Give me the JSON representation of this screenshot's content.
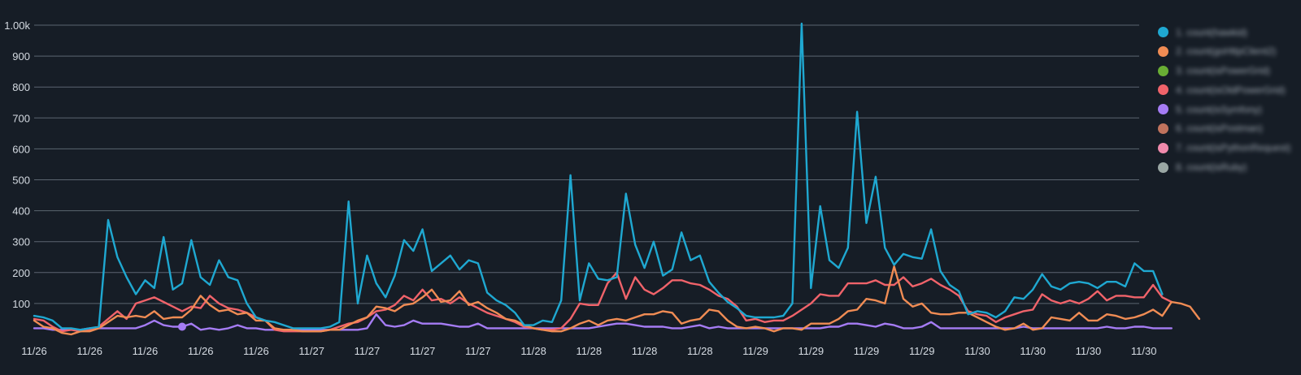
{
  "chart_data": {
    "type": "line",
    "y_ticks": [
      "100",
      "200",
      "300",
      "400",
      "500",
      "600",
      "700",
      "800",
      "900",
      "1.00k"
    ],
    "ylim": [
      0,
      1000
    ],
    "x_ticks": [
      "11/26",
      "11/26",
      "11/26",
      "11/26",
      "11/26",
      "11/27",
      "11/27",
      "11/27",
      "11/27",
      "11/28",
      "11/28",
      "11/28",
      "11/28",
      "11/29",
      "11/29",
      "11/29",
      "11/29",
      "11/30",
      "11/30",
      "11/30",
      "11/30"
    ],
    "x_tick_positions": [
      0,
      6,
      12,
      18,
      24,
      30,
      36,
      42,
      48,
      54,
      60,
      66,
      72,
      78,
      84,
      90,
      96,
      102,
      108,
      114,
      120
    ],
    "xlim": [
      0,
      119.5
    ],
    "grid": true,
    "legend_position": "right",
    "series": [
      {
        "name": "1. count(hawkid)",
        "color": "#1fa8d1",
        "values": [
          60,
          55,
          45,
          20,
          20,
          15,
          20,
          25,
          370,
          250,
          185,
          130,
          175,
          150,
          315,
          145,
          165,
          305,
          185,
          160,
          240,
          185,
          175,
          100,
          55,
          45,
          40,
          30,
          20,
          20,
          20,
          20,
          25,
          40,
          430,
          100,
          255,
          165,
          120,
          190,
          305,
          270,
          340,
          205,
          230,
          255,
          210,
          240,
          230,
          135,
          110,
          95,
          70,
          30,
          30,
          45,
          40,
          110,
          515,
          110,
          230,
          180,
          175,
          185,
          455,
          290,
          215,
          300,
          190,
          210,
          330,
          240,
          255,
          170,
          135,
          105,
          85,
          60,
          55,
          55,
          55,
          60,
          100,
          1005,
          150,
          415,
          240,
          215,
          280,
          720,
          360,
          510,
          280,
          225,
          260,
          250,
          245,
          340,
          205,
          160,
          140,
          65,
          75,
          70,
          55,
          75,
          120,
          115,
          145,
          195,
          155,
          145,
          165,
          170,
          165,
          150,
          170,
          170,
          155,
          230,
          205,
          205,
          130
        ]
      },
      {
        "name": "2. count(goHttpClient2)",
        "color": "#f08c54",
        "values": [
          45,
          25,
          20,
          5,
          0,
          10,
          10,
          20,
          40,
          60,
          55,
          60,
          55,
          75,
          50,
          55,
          55,
          80,
          125,
          95,
          75,
          80,
          65,
          70,
          45,
          45,
          20,
          15,
          15,
          10,
          10,
          10,
          15,
          15,
          30,
          45,
          55,
          90,
          85,
          75,
          95,
          100,
          120,
          145,
          105,
          110,
          140,
          95,
          105,
          85,
          70,
          50,
          45,
          30,
          20,
          15,
          10,
          10,
          20,
          35,
          45,
          30,
          45,
          50,
          45,
          55,
          65,
          65,
          75,
          70,
          35,
          45,
          50,
          80,
          75,
          45,
          25,
          20,
          25,
          20,
          10,
          20,
          20,
          15,
          35,
          35,
          35,
          50,
          75,
          80,
          115,
          110,
          100,
          220,
          115,
          90,
          100,
          70,
          65,
          65,
          70,
          70,
          55,
          40,
          25,
          15,
          20,
          35,
          15,
          20,
          55,
          50,
          45,
          70,
          45,
          45,
          65,
          60,
          50,
          55,
          65,
          80,
          60,
          105,
          100,
          90,
          50
        ]
      },
      {
        "name": "3. count(isPowerGrid)",
        "color": "#69ae34",
        "values": []
      },
      {
        "name": "4. count(isOldPowerGrid)",
        "color": "#f0636a",
        "values": [
          50,
          45,
          25,
          10,
          15,
          10,
          15,
          25,
          50,
          75,
          50,
          100,
          110,
          120,
          105,
          90,
          75,
          90,
          85,
          125,
          100,
          85,
          80,
          70,
          55,
          45,
          15,
          10,
          10,
          10,
          10,
          10,
          15,
          25,
          35,
          40,
          55,
          75,
          80,
          95,
          125,
          110,
          145,
          110,
          115,
          100,
          120,
          100,
          85,
          70,
          60,
          50,
          40,
          25,
          20,
          15,
          15,
          20,
          50,
          100,
          95,
          95,
          165,
          200,
          115,
          185,
          145,
          130,
          150,
          175,
          175,
          165,
          160,
          145,
          125,
          115,
          90,
          45,
          50,
          40,
          45,
          45,
          60,
          80,
          100,
          130,
          125,
          125,
          165,
          165,
          165,
          175,
          160,
          160,
          185,
          155,
          165,
          180,
          160,
          145,
          125,
          75,
          65,
          60,
          40,
          55,
          65,
          75,
          80,
          130,
          110,
          100,
          110,
          100,
          115,
          140,
          110,
          125,
          125,
          120,
          120,
          160,
          120,
          105
        ]
      },
      {
        "name": "5. count(isSymfony)",
        "color": "#a57cf4",
        "values": [
          20,
          20,
          15,
          15,
          15,
          15,
          20,
          20,
          20,
          20,
          20,
          20,
          30,
          45,
          30,
          25,
          25,
          35,
          15,
          20,
          15,
          20,
          30,
          20,
          20,
          15,
          15,
          15,
          15,
          15,
          15,
          15,
          15,
          15,
          15,
          15,
          20,
          65,
          30,
          25,
          30,
          45,
          35,
          35,
          35,
          30,
          25,
          25,
          35,
          20,
          20,
          20,
          20,
          20,
          20,
          20,
          20,
          20,
          20,
          20,
          20,
          25,
          30,
          35,
          35,
          30,
          25,
          25,
          25,
          20,
          20,
          25,
          30,
          20,
          25,
          20,
          20,
          20,
          20,
          20,
          20,
          20,
          20,
          20,
          20,
          20,
          25,
          25,
          35,
          35,
          30,
          25,
          35,
          30,
          20,
          20,
          25,
          40,
          20,
          20,
          20,
          20,
          20,
          20,
          20,
          20,
          20,
          25,
          20,
          20,
          20,
          20,
          20,
          20,
          20,
          20,
          25,
          20,
          20,
          25,
          25,
          20,
          20,
          20
        ]
      },
      {
        "name": "6. count(isPostman)",
        "color": "#c0735d",
        "values": []
      },
      {
        "name": "7. count(isPythonRequest)",
        "color": "#f08aac",
        "values": []
      },
      {
        "name": "8. count(isRuby)",
        "color": "#9aa7a4",
        "values": []
      }
    ],
    "highlight": {
      "series_index": 4,
      "point_index": 16
    }
  }
}
